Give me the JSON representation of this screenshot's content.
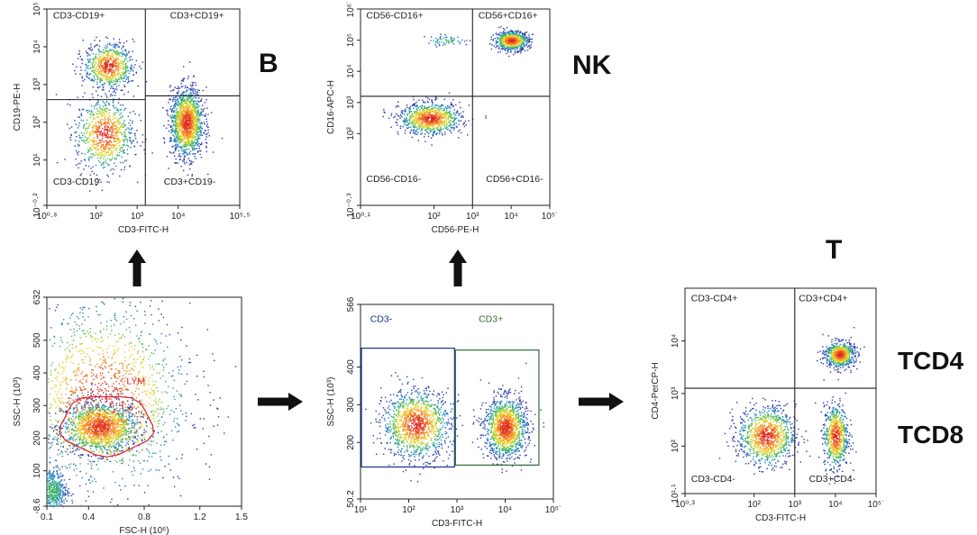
{
  "figure_labels": {
    "b": "B",
    "nk": "NK",
    "t": "T",
    "tcd4": "TCD4",
    "tcd8": "TCD8"
  },
  "colors": {
    "axis": "#222222",
    "lym_gate": "#e0202a",
    "cd3neg_gate": "#1a2f9a",
    "cd3pos_gate": "#2f6b3a",
    "arrow": "#111111"
  },
  "chart_data": [
    {
      "id": "fsc_ssc",
      "type": "scatter",
      "title": "",
      "xlabel": "FSC-H (10⁶)",
      "ylabel": "SSC-H (10³)",
      "x_scale": "linear",
      "y_scale": "linear",
      "xlim": [
        0.1,
        1.5
      ],
      "ylim": [
        -8.6,
        632
      ],
      "x_ticks": [
        {
          "v": 0.1,
          "label": "0.1"
        },
        {
          "v": 0.4,
          "label": "0.4"
        },
        {
          "v": 0.8,
          "label": "0.8"
        },
        {
          "v": 1.2,
          "label": "1.2"
        },
        {
          "v": 1.5,
          "label": "1.5"
        }
      ],
      "y_ticks": [
        {
          "v": -8.6,
          "label": "-8.6"
        },
        {
          "v": 100,
          "label": "100"
        },
        {
          "v": 200,
          "label": "200"
        },
        {
          "v": 300,
          "label": "300"
        },
        {
          "v": 400,
          "label": "400"
        },
        {
          "v": 500,
          "label": "500"
        },
        {
          "v": 632,
          "label": "632"
        }
      ],
      "gates": [
        {
          "name": "LYM",
          "shape": "ellipse",
          "center": [
            0.53,
            240
          ],
          "radii": [
            0.33,
            92
          ]
        }
      ],
      "populations": [
        {
          "cx": 0.48,
          "cy": 235,
          "sx": 0.14,
          "sy": 40,
          "n": 1500
        },
        {
          "cx": 0.14,
          "cy": 40,
          "sx": 0.05,
          "sy": 35,
          "n": 450
        },
        {
          "cx": 0.5,
          "cy": 330,
          "sx": 0.32,
          "sy": 150,
          "n": 1500
        }
      ],
      "quadrant_labels": [],
      "dividers": []
    },
    {
      "id": "cd3_ssc",
      "type": "scatter",
      "title": "",
      "xlabel": "CD3-FITC-H",
      "ylabel": "SSC-H (10³)",
      "x_scale": "log",
      "y_scale": "linear",
      "xlim": [
        1,
        5
      ],
      "ylim": [
        50.2,
        566
      ],
      "x_ticks": [
        {
          "v": 1,
          "label": "10¹"
        },
        {
          "v": 2,
          "label": "10²"
        },
        {
          "v": 3,
          "label": "10³"
        },
        {
          "v": 4,
          "label": "10⁴"
        },
        {
          "v": 5,
          "label": "10⁵˙"
        }
      ],
      "y_ticks": [
        {
          "v": 50.2,
          "label": "50.2"
        },
        {
          "v": 200,
          "label": "200"
        },
        {
          "v": 300,
          "label": "300"
        },
        {
          "v": 400,
          "label": "400"
        },
        {
          "v": 566,
          "label": "566"
        }
      ],
      "gates": [
        {
          "name": "CD3-",
          "shape": "rect",
          "x": [
            1,
            2.95
          ],
          "y": [
            135,
            450
          ]
        },
        {
          "name": "CD3+",
          "shape": "rect",
          "x": [
            2.95,
            4.7
          ],
          "y": [
            140,
            445
          ]
        }
      ],
      "populations": [
        {
          "cx": 2.15,
          "cy": 250,
          "sx": 0.35,
          "sy": 45,
          "n": 1200
        },
        {
          "cx": 4.0,
          "cy": 240,
          "sx": 0.22,
          "sy": 40,
          "n": 1300
        }
      ],
      "quadrant_labels": [
        {
          "text": "CD3-",
          "x": 1.2,
          "y": 520,
          "color": "#1a2f9a"
        },
        {
          "text": "CD3+",
          "x": 3.45,
          "y": 520,
          "color": "#2f6b3a"
        }
      ],
      "dividers": []
    },
    {
      "id": "cd3_cd19",
      "type": "scatter",
      "title": "",
      "xlabel": "CD3-FITC-H",
      "ylabel": "CD19-PE-H",
      "x_scale": "log",
      "y_scale": "log",
      "xlim": [
        0.8,
        5.5
      ],
      "ylim": [
        -0.2,
        5
      ],
      "x_ticks": [
        {
          "v": 0.8,
          "label": "10⁰·⁸"
        },
        {
          "v": 2,
          "label": "10²"
        },
        {
          "v": 3,
          "label": "10³"
        },
        {
          "v": 4,
          "label": "10⁴"
        },
        {
          "v": 5.5,
          "label": "10⁵·⁵"
        }
      ],
      "y_ticks": [
        {
          "v": -0.2,
          "label": "10⁻⁰·²"
        },
        {
          "v": 1,
          "label": "10¹"
        },
        {
          "v": 2,
          "label": "10²"
        },
        {
          "v": 3,
          "label": "10³"
        },
        {
          "v": 4,
          "label": "10⁴"
        },
        {
          "v": 5,
          "label": "10⁵"
        }
      ],
      "gates": [],
      "populations": [
        {
          "cx": 2.3,
          "cy": 3.5,
          "sx": 0.3,
          "sy": 0.3,
          "n": 700
        },
        {
          "cx": 2.2,
          "cy": 1.7,
          "sx": 0.35,
          "sy": 0.5,
          "n": 800
        },
        {
          "cx": 4.2,
          "cy": 2.0,
          "sx": 0.2,
          "sy": 0.45,
          "n": 1400
        }
      ],
      "dividers": [
        {
          "x1": 0.8,
          "y1": 2.6,
          "x2": 3.2,
          "y2": 2.6
        },
        {
          "x1": 3.2,
          "y1": 2.7,
          "x2": 5.5,
          "y2": 2.7
        },
        {
          "x1": 3.2,
          "y1": -0.2,
          "x2": 3.2,
          "y2": 5
        }
      ],
      "quadrant_labels": [
        {
          "text": "CD3-CD19+",
          "x": 0.95,
          "y": 4.75,
          "color": "#222"
        },
        {
          "text": "CD3+CD19+",
          "x": 3.8,
          "y": 4.75,
          "color": "#222"
        },
        {
          "text": "CD3-CD19-",
          "x": 0.95,
          "y": 0.35,
          "color": "#222"
        },
        {
          "text": "CD3+CD19-",
          "x": 3.65,
          "y": 0.35,
          "color": "#222"
        }
      ]
    },
    {
      "id": "cd56_cd16",
      "type": "scatter",
      "title": "",
      "xlabel": "CD56-PE-H",
      "ylabel": "CD16-APC-H",
      "x_scale": "log",
      "y_scale": "log",
      "xlim": [
        0.1,
        5
      ],
      "ylim": [
        -0.3,
        6
      ],
      "x_ticks": [
        {
          "v": 0.1,
          "label": "10⁰·¹"
        },
        {
          "v": 2,
          "label": "10²"
        },
        {
          "v": 3,
          "label": "10³"
        },
        {
          "v": 4,
          "label": "10⁴"
        },
        {
          "v": 5,
          "label": "10⁵˙"
        }
      ],
      "y_ticks": [
        {
          "v": -0.3,
          "label": "10⁻⁰·³"
        },
        {
          "v": 2,
          "label": "10²"
        },
        {
          "v": 3,
          "label": "10³"
        },
        {
          "v": 4,
          "label": "10⁴"
        },
        {
          "v": 5,
          "label": "10⁵"
        },
        {
          "v": 6,
          "label": "10⁶˙"
        }
      ],
      "gates": [],
      "populations": [
        {
          "cx": 4.0,
          "cy": 5.0,
          "sx": 0.22,
          "sy": 0.15,
          "n": 700
        },
        {
          "cx": 1.9,
          "cy": 2.5,
          "sx": 0.4,
          "sy": 0.25,
          "n": 900
        },
        {
          "cx": 2.3,
          "cy": 5.0,
          "sx": 0.3,
          "sy": 0.08,
          "n": 60
        }
      ],
      "dividers": [
        {
          "x1": 0.1,
          "y1": 3.2,
          "x2": 5,
          "y2": 3.2
        },
        {
          "x1": 3.0,
          "y1": -0.3,
          "x2": 3.0,
          "y2": 6
        }
      ],
      "quadrant_labels": [
        {
          "text": "CD56-CD16+",
          "x": 0.25,
          "y": 5.7,
          "color": "#222"
        },
        {
          "text": "CD56+CD16+",
          "x": 3.15,
          "y": 5.7,
          "color": "#222"
        },
        {
          "text": "CD56-CD16-",
          "x": 0.25,
          "y": 0.45,
          "color": "#222"
        },
        {
          "text": "CD56+CD16-",
          "x": 3.35,
          "y": 0.45,
          "color": "#222"
        }
      ]
    },
    {
      "id": "cd3_cd4",
      "type": "scatter",
      "title": "",
      "xlabel": "CD3-FITC-H",
      "ylabel": "CD4-PerCP-H",
      "x_scale": "log",
      "y_scale": "log",
      "xlim": [
        0.3,
        5
      ],
      "ylim": [
        1.1,
        5
      ],
      "x_ticks": [
        {
          "v": 0.3,
          "label": "10⁰·³"
        },
        {
          "v": 2,
          "label": "10²"
        },
        {
          "v": 3,
          "label": "10³"
        },
        {
          "v": 4,
          "label": "10⁴"
        },
        {
          "v": 5,
          "label": "10⁵˙"
        }
      ],
      "y_ticks": [
        {
          "v": 1.1,
          "label": "10¹·¹"
        },
        {
          "v": 2,
          "label": "10²"
        },
        {
          "v": 3,
          "label": "10³"
        },
        {
          "v": 4,
          "label": "10⁴"
        }
      ],
      "gates": [],
      "populations": [
        {
          "cx": 4.1,
          "cy": 3.75,
          "sx": 0.18,
          "sy": 0.12,
          "n": 700
        },
        {
          "cx": 2.3,
          "cy": 2.2,
          "sx": 0.35,
          "sy": 0.28,
          "n": 1000
        },
        {
          "cx": 4.0,
          "cy": 2.2,
          "sx": 0.15,
          "sy": 0.3,
          "n": 700
        }
      ],
      "dividers": [
        {
          "x1": 0.3,
          "y1": 3.1,
          "x2": 5,
          "y2": 3.1
        },
        {
          "x1": 3.0,
          "y1": 1.1,
          "x2": 3.0,
          "y2": 5
        }
      ],
      "quadrant_labels": [
        {
          "text": "CD3-CD4+",
          "x": 0.45,
          "y": 4.75,
          "color": "#222"
        },
        {
          "text": "CD3+CD4+",
          "x": 3.1,
          "y": 4.75,
          "color": "#222"
        },
        {
          "text": "CD3-CD4-",
          "x": 0.45,
          "y": 1.32,
          "color": "#222"
        },
        {
          "text": "CD3+CD4-",
          "x": 3.35,
          "y": 1.32,
          "color": "#222"
        }
      ]
    }
  ]
}
